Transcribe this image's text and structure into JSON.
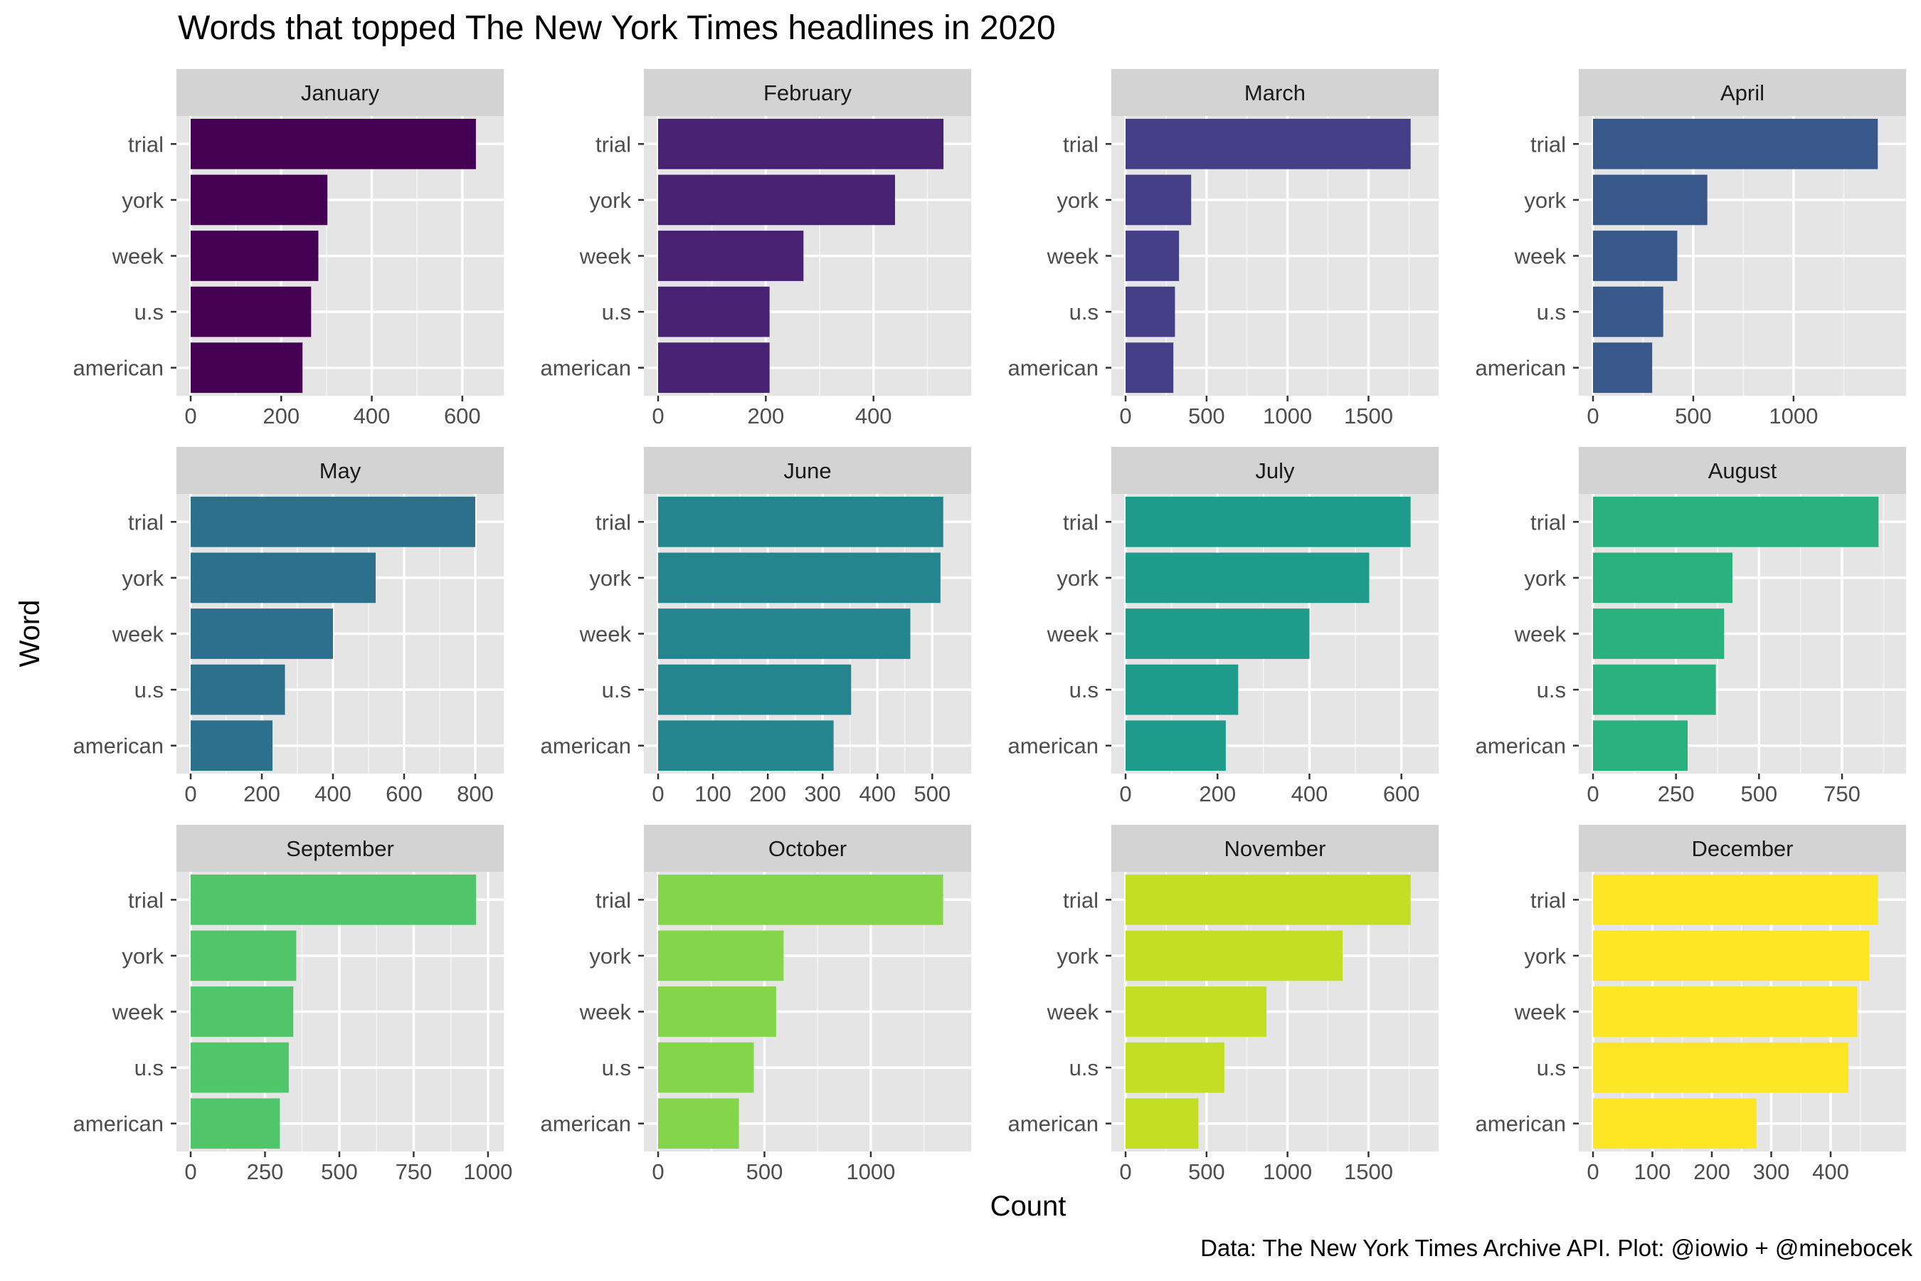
{
  "chart_data": {
    "type": "bar",
    "orientation": "horizontal",
    "title": "Words that topped The New York Times headlines in 2020",
    "xlabel": "Count",
    "ylabel": "Word",
    "caption": "Data: The New York Times Archive API. Plot: @iowio + @minebocek",
    "categories": [
      "trial",
      "york",
      "week",
      "u.s",
      "american"
    ],
    "panels": [
      {
        "month": "January",
        "values": [
          630,
          302,
          282,
          266,
          247
        ],
        "xlim": [
          0,
          660
        ],
        "xticks": [
          0,
          200,
          400,
          600
        ],
        "color": "#440154"
      },
      {
        "month": "February",
        "values": [
          530,
          440,
          270,
          207,
          207
        ],
        "xlim": [
          0,
          555
        ],
        "xticks": [
          0,
          200,
          400
        ],
        "color": "#482173"
      },
      {
        "month": "March",
        "values": [
          1760,
          405,
          330,
          305,
          295
        ],
        "xlim": [
          0,
          1845
        ],
        "xticks": [
          0,
          500,
          1000,
          1500
        ],
        "color": "#433E85"
      },
      {
        "month": "April",
        "values": [
          1420,
          570,
          420,
          350,
          295
        ],
        "xlim": [
          0,
          1490
        ],
        "xticks": [
          0,
          500,
          1000
        ],
        "color": "#38588C"
      },
      {
        "month": "May",
        "values": [
          800,
          520,
          400,
          265,
          230
        ],
        "xlim": [
          0,
          840
        ],
        "xticks": [
          0,
          200,
          400,
          600,
          800
        ],
        "color": "#2D708E"
      },
      {
        "month": "June",
        "values": [
          520,
          515,
          460,
          352,
          320
        ],
        "xlim": [
          0,
          545
        ],
        "xticks": [
          0,
          100,
          200,
          300,
          400,
          500
        ],
        "color": "#25858E"
      },
      {
        "month": "July",
        "values": [
          620,
          530,
          400,
          245,
          218
        ],
        "xlim": [
          0,
          650
        ],
        "xticks": [
          0,
          200,
          400,
          600
        ],
        "color": "#1E9B8A"
      },
      {
        "month": "August",
        "values": [
          860,
          420,
          395,
          370,
          285
        ],
        "xlim": [
          0,
          900
        ],
        "xticks": [
          0,
          250,
          500,
          750
        ],
        "color": "#2BB07F"
      },
      {
        "month": "September",
        "values": [
          960,
          355,
          345,
          330,
          300
        ],
        "xlim": [
          0,
          1005
        ],
        "xticks": [
          0,
          250,
          500,
          750,
          1000
        ],
        "color": "#51C56A"
      },
      {
        "month": "October",
        "values": [
          1340,
          590,
          555,
          450,
          380
        ],
        "xlim": [
          0,
          1405
        ],
        "xticks": [
          0,
          500,
          1000
        ],
        "color": "#85D54A"
      },
      {
        "month": "November",
        "values": [
          1760,
          1340,
          870,
          610,
          450
        ],
        "xlim": [
          0,
          1845
        ],
        "xticks": [
          0,
          500,
          1000,
          1500
        ],
        "color": "#C2DF23"
      },
      {
        "month": "December",
        "values": [
          480,
          465,
          445,
          430,
          275
        ],
        "xlim": [
          0,
          503
        ],
        "xticks": [
          0,
          100,
          200,
          300,
          400
        ],
        "color": "#FDE725"
      }
    ]
  }
}
